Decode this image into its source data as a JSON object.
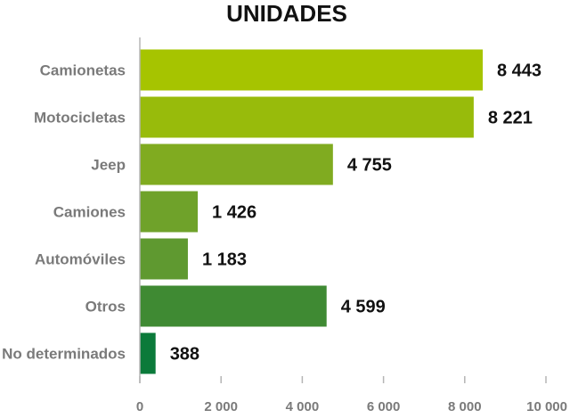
{
  "chart_data": {
    "type": "bar",
    "orientation": "horizontal",
    "title": "UNIDADES",
    "xlabel": "",
    "ylabel": "",
    "categories": [
      "Camionetas",
      "Motocicletas",
      "Jeep",
      "Camiones",
      "Automóviles",
      "Otros",
      "No determinados"
    ],
    "values": [
      8443,
      8221,
      4755,
      1426,
      1183,
      4599,
      388
    ],
    "value_labels": [
      "8 443",
      "8 221",
      "4 755",
      "1 426",
      "1 183",
      "4 599",
      "388"
    ],
    "bar_colors": [
      "#a6c400",
      "#98bb0b",
      "#80ab20",
      "#6fa22a",
      "#5f9930",
      "#3f8a33",
      "#0b7a3a"
    ],
    "xlim": [
      0,
      10000
    ],
    "ticks": [
      0,
      2000,
      4000,
      6000,
      8000,
      10000
    ],
    "tick_labels": [
      "0",
      "2 000",
      "4 000",
      "6 000",
      "8 000",
      "10 000"
    ],
    "grid": false,
    "legend": "none"
  }
}
